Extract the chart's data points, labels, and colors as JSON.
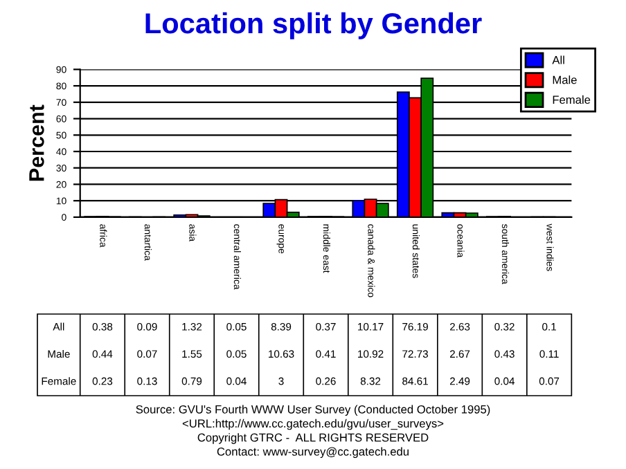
{
  "chart_data": {
    "type": "bar",
    "title": "Location split by Gender",
    "ylabel": "Percent",
    "categories": [
      "africa",
      "antartica",
      "asia",
      "central america",
      "europe",
      "middle east",
      "canada & mexico",
      "united states",
      "oceania",
      "south america",
      "west indies"
    ],
    "series": [
      {
        "name": "All",
        "color": "#0000ff",
        "values": [
          0.38,
          0.09,
          1.32,
          0.05,
          8.39,
          0.37,
          10.17,
          76.19,
          2.63,
          0.32,
          0.1
        ]
      },
      {
        "name": "Male",
        "color": "#ff0000",
        "values": [
          0.44,
          0.07,
          1.55,
          0.05,
          10.63,
          0.41,
          10.92,
          72.73,
          2.67,
          0.43,
          0.11
        ]
      },
      {
        "name": "Female",
        "color": "#008000",
        "values": [
          0.23,
          0.13,
          0.79,
          0.04,
          3,
          0.26,
          8.32,
          84.61,
          2.49,
          0.04,
          0.07
        ]
      }
    ],
    "ylim": [
      0,
      90
    ],
    "yticks": [
      0,
      10,
      20,
      30,
      40,
      50,
      60,
      70,
      80,
      90
    ],
    "grid": "y",
    "legend": "top right",
    "data_labels": true,
    "annotations": [
      "Source: GVU's Fourth WWW User Survey (Conducted October 1995)",
      "<URL:http://www.cc.gatech.edu/gvu/user_surveys>",
      "Copyright GTRC -  ALL RIGHTS RESERVED",
      "Contact: www-survey@cc.gatech.edu"
    ]
  }
}
